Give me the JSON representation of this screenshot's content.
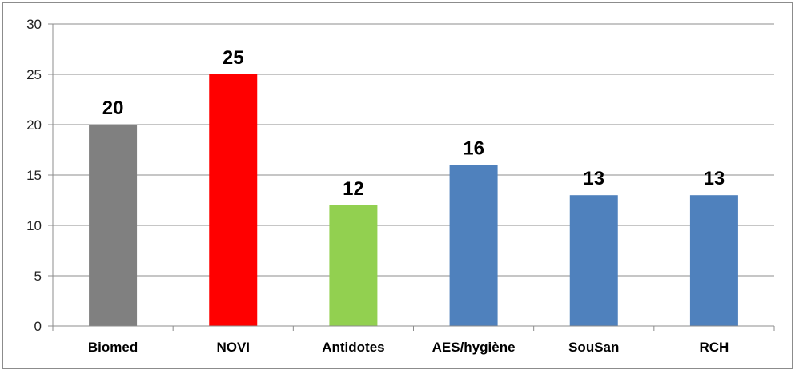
{
  "chart_data": {
    "type": "bar",
    "categories": [
      "Biomed",
      "NOVI",
      "Antidotes",
      "AES/hygiène",
      "SouSan",
      "RCH"
    ],
    "values": [
      20,
      25,
      12,
      16,
      13,
      13
    ],
    "colors": [
      "#808080",
      "#ff0000",
      "#92d050",
      "#4f81bd",
      "#4f81bd",
      "#4f81bd"
    ],
    "ylim": [
      0,
      30
    ],
    "yticks": [
      0,
      5,
      10,
      15,
      20,
      25,
      30
    ],
    "grid": true,
    "legend": "none"
  }
}
